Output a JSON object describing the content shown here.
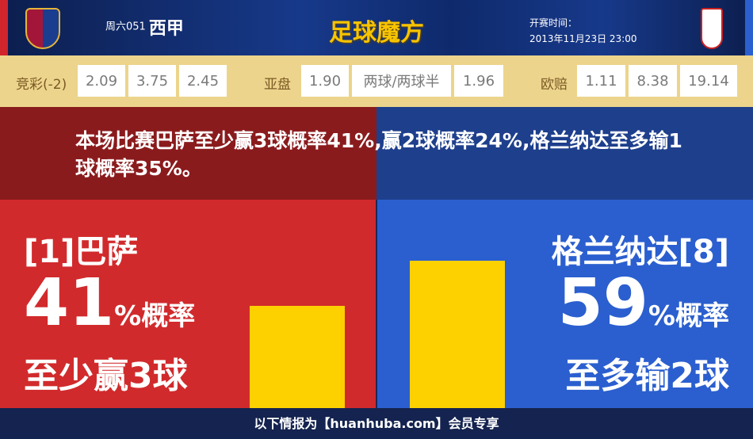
{
  "header": {
    "league_prefix": "周六051",
    "league": "西甲",
    "brand": "足球魔方",
    "time_label": "开赛时间：",
    "time_value": "2013年11月23日 23:00",
    "home_logo": "FC Barcelona crest",
    "away_logo": "Granada CF crest"
  },
  "odds": {
    "jingcai": {
      "label": "竞彩(-2)",
      "values": [
        "2.09",
        "3.75",
        "2.45"
      ]
    },
    "asian": {
      "label": "亚盘",
      "values": [
        "1.90",
        "两球/两球半",
        "1.96"
      ]
    },
    "euro": {
      "label": "欧赔",
      "values": [
        "1.11",
        "8.38",
        "19.14"
      ]
    }
  },
  "summary": "本场比赛巴萨至少赢3球概率41%,赢2球概率24%,格兰纳达至多输1球概率35%。",
  "home": {
    "team": "[1]巴萨",
    "percent": "41",
    "percent_suffix": "%概率",
    "outcome": "至少赢3球",
    "value": 41,
    "color": "#d12a2c"
  },
  "away": {
    "team": "格兰纳达[8]",
    "percent": "59",
    "percent_suffix": "%概率",
    "outcome": "至多输2球",
    "value": 59,
    "color": "#2b5fcf"
  },
  "footer": "以下情报为【huanhuba.com】会员专享"
}
